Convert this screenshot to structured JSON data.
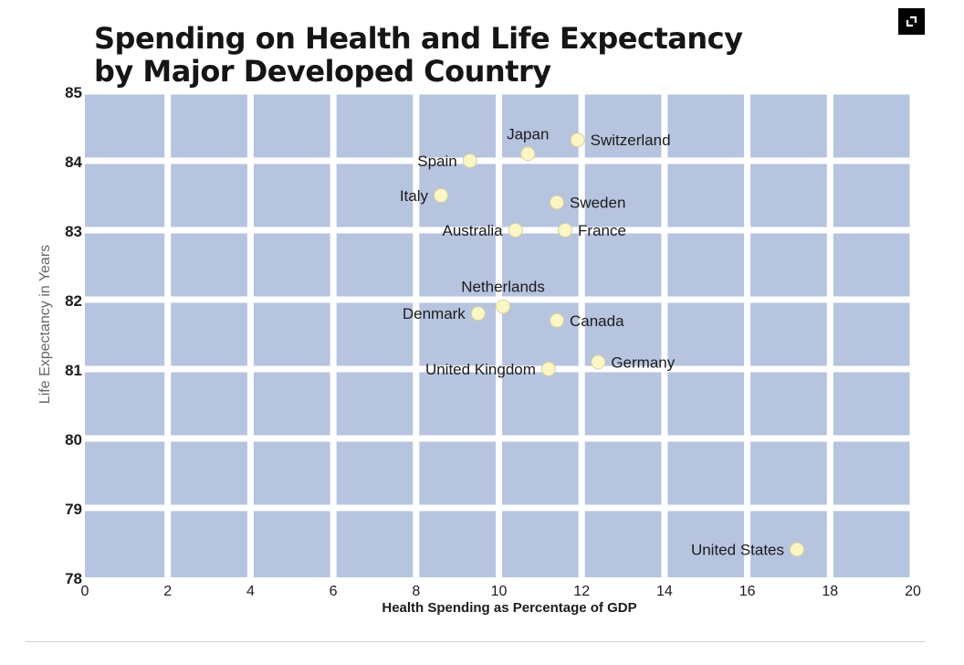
{
  "header": {
    "title_line1": "Spending on Health and Life Expectancy",
    "title_line2": "by Major Developed Country"
  },
  "controls": {
    "expand_icon": "expand-icon"
  },
  "colors": {
    "plot_cell": "#b7c4df",
    "grid_line": "#ffffff",
    "marker_fill": "#fbf6c6",
    "marker_stroke": "#d9d39a",
    "text": "#1c1c1c",
    "axis_label": "#666666"
  },
  "chart_data": {
    "type": "scatter",
    "title": "Spending on Health and Life Expectancy by Major Developed Country",
    "xlabel": "Health Spending as Percentage of GDP",
    "ylabel": "Life Expectancy in Years",
    "xlim": [
      0,
      20
    ],
    "ylim": [
      78,
      85
    ],
    "xticks": [
      "0",
      "2",
      "4",
      "6",
      "8",
      "10",
      "12",
      "14",
      "16",
      "18",
      "20"
    ],
    "yticks": [
      "78",
      "79",
      "80",
      "81",
      "82",
      "83",
      "84",
      "85"
    ],
    "grid": true,
    "points": [
      {
        "label": "Japan",
        "x": 10.7,
        "y": 84.1,
        "label_side": "above"
      },
      {
        "label": "Switzerland",
        "x": 11.9,
        "y": 84.3,
        "label_side": "right"
      },
      {
        "label": "Spain",
        "x": 9.3,
        "y": 84.0,
        "label_side": "left"
      },
      {
        "label": "Italy",
        "x": 8.6,
        "y": 83.5,
        "label_side": "left"
      },
      {
        "label": "Sweden",
        "x": 11.4,
        "y": 83.4,
        "label_side": "right"
      },
      {
        "label": "Australia",
        "x": 10.4,
        "y": 83.0,
        "label_side": "left"
      },
      {
        "label": "France",
        "x": 11.6,
        "y": 83.0,
        "label_side": "right"
      },
      {
        "label": "Netherlands",
        "x": 10.1,
        "y": 81.9,
        "label_side": "above"
      },
      {
        "label": "Denmark",
        "x": 9.5,
        "y": 81.8,
        "label_side": "left"
      },
      {
        "label": "Canada",
        "x": 11.4,
        "y": 81.7,
        "label_side": "right"
      },
      {
        "label": "United Kingdom",
        "x": 11.2,
        "y": 81.0,
        "label_side": "left"
      },
      {
        "label": "Germany",
        "x": 12.4,
        "y": 81.1,
        "label_side": "right"
      },
      {
        "label": "United States",
        "x": 17.2,
        "y": 78.4,
        "label_side": "left"
      }
    ]
  }
}
